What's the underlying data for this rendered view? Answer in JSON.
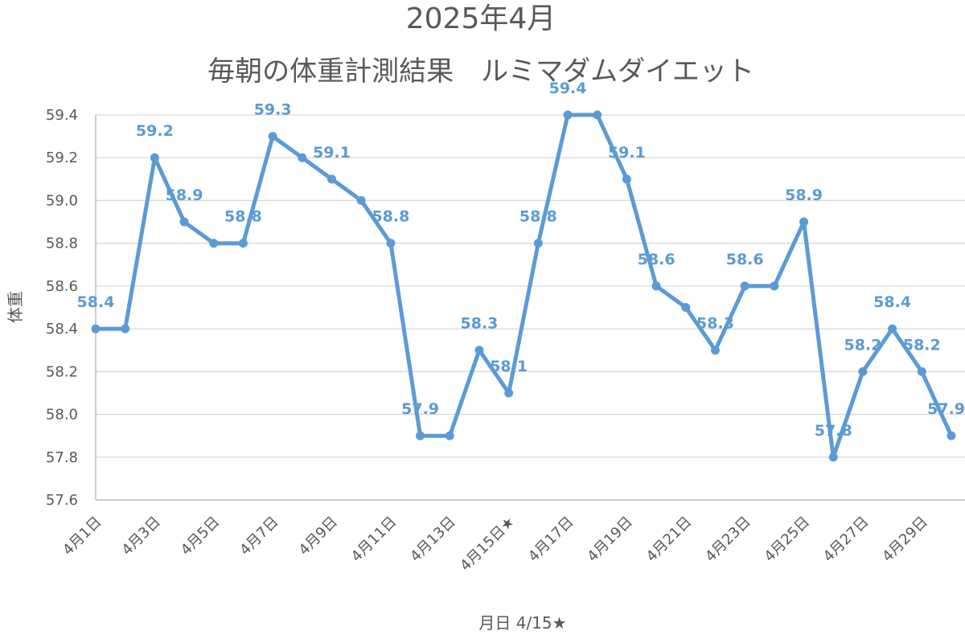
{
  "chart_data": {
    "type": "line",
    "title": "2025年4月",
    "subtitle": "毎朝の体重計測結果　ルミマダムダイエット",
    "xlabel": "月日 4/15★",
    "ylabel": "体重",
    "ylim": [
      57.6,
      59.4
    ],
    "y_ticks": [
      "57.6",
      "57.8",
      "58.0",
      "58.2",
      "58.4",
      "58.6",
      "58.8",
      "59.0",
      "59.2",
      "59.4"
    ],
    "x_tick_labels": [
      "4月1日",
      "4月3日",
      "4月5日",
      "4月7日",
      "4月9日",
      "4月11日",
      "4月13日",
      "4月15日★",
      "4月17日",
      "4月19日",
      "4月21日",
      "4月23日",
      "4月25日",
      "4月27日",
      "4月29日"
    ],
    "grid": true,
    "legend": "none",
    "series": [
      {
        "color": "#5B9BD5",
        "values": [
          58.4,
          58.4,
          59.2,
          58.9,
          58.8,
          58.8,
          59.3,
          59.2,
          59.1,
          59.0,
          58.8,
          57.9,
          57.9,
          58.3,
          58.1,
          58.8,
          59.4,
          59.4,
          59.1,
          58.6,
          58.5,
          58.3,
          58.6,
          58.6,
          58.9,
          57.8,
          58.2,
          58.4,
          58.2,
          57.9
        ],
        "data_labels": [
          "58.4",
          "",
          "59.2",
          "58.9",
          "",
          "58.8",
          "59.3",
          "",
          "59.1",
          "",
          "58.8",
          "57.9",
          "",
          "58.3",
          "58.1",
          "58.8",
          "59.4",
          "",
          "59.1",
          "58.6",
          "",
          "58.3",
          "58.6",
          "",
          "58.9",
          "57.8",
          "58.2",
          "58.4",
          "58.2",
          "57.9"
        ]
      }
    ]
  }
}
